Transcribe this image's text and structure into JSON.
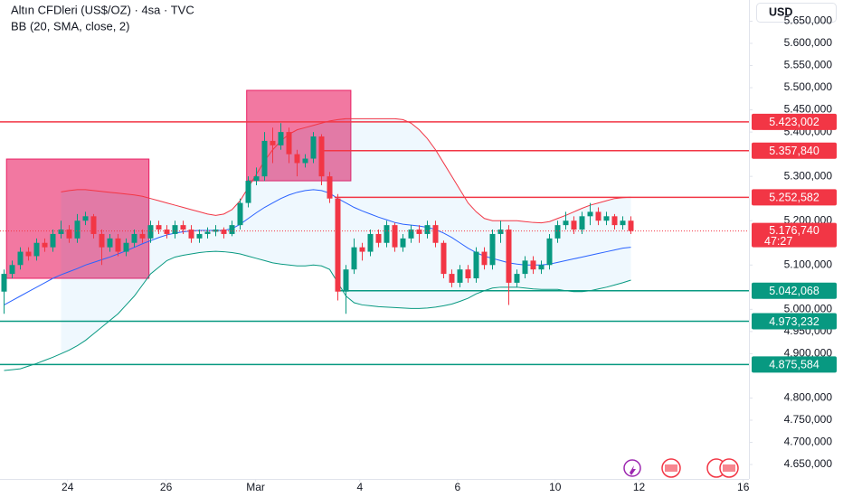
{
  "chart_data": {
    "type": "candlestick",
    "title": "Altın CFDleri (US$/OZ) · 4sa · TVC",
    "subtitle": "BB (20, SMA, close, 2)",
    "currency": "USD",
    "ylim": [
      4617.5,
      5697.8
    ],
    "yticks": [
      {
        "value": 5650,
        "label": "5.650,000"
      },
      {
        "value": 5600,
        "label": "5.600,000"
      },
      {
        "value": 5550,
        "label": "5.550,000"
      },
      {
        "value": 5500,
        "label": "5.500,000"
      },
      {
        "value": 5450,
        "label": "5.450,000"
      },
      {
        "value": 5400,
        "label": "5.400,000"
      },
      {
        "value": 5300,
        "label": "5.300,000"
      },
      {
        "value": 5200,
        "label": "5.200,000"
      },
      {
        "value": 5100,
        "label": "5.100,000"
      },
      {
        "value": 5000,
        "label": "5.000,000"
      },
      {
        "value": 4950,
        "label": "4.950,000"
      },
      {
        "value": 4900,
        "label": "4.900,000"
      },
      {
        "value": 4800,
        "label": "4.800,000"
      },
      {
        "value": 4750,
        "label": "4.750,000"
      },
      {
        "value": 4700,
        "label": "4.700,000"
      },
      {
        "value": 4650,
        "label": "4.650,000"
      }
    ],
    "xlim": [
      -0.5,
      91.5
    ],
    "xticks": [
      {
        "value": 7.8,
        "label": "24"
      },
      {
        "value": 19.9,
        "label": "26"
      },
      {
        "value": 30.9,
        "label": "Mar"
      },
      {
        "value": 43.7,
        "label": "4"
      },
      {
        "value": 55.7,
        "label": "6"
      },
      {
        "value": 67.7,
        "label": "10"
      },
      {
        "value": 78,
        "label": "12"
      },
      {
        "value": 90.8,
        "label": "16"
      }
    ],
    "up_color": "#089981",
    "down_color": "#f23645",
    "open": [
      5040,
      5080,
      5100,
      5130,
      5120,
      5150,
      5140,
      5170,
      5180,
      5160,
      5200,
      5210,
      5170,
      5140,
      5160,
      5130,
      5150,
      5170,
      5160,
      5190,
      5180,
      5170,
      5190,
      5180,
      5160,
      5170,
      5175,
      5180,
      5170,
      5190,
      5240,
      5290,
      5300,
      5380,
      5370,
      5400,
      5350,
      5330,
      5340,
      5390,
      5300,
      5250,
      5040,
      5090,
      5140,
      5130,
      5170,
      5150,
      5190,
      5140,
      5160,
      5180,
      5170,
      5190,
      5150,
      5080,
      5060,
      5090,
      5070,
      5130,
      5100,
      5170,
      5180,
      5060,
      5080,
      5110,
      5090,
      5100,
      5160,
      5190,
      5200,
      5180,
      5210,
      5220,
      5200,
      5210,
      5190,
      5200
    ],
    "high": [
      5090,
      5110,
      5140,
      5140,
      5160,
      5160,
      5180,
      5200,
      5190,
      5215,
      5220,
      5215,
      5180,
      5170,
      5170,
      5160,
      5180,
      5180,
      5200,
      5200,
      5190,
      5200,
      5200,
      5190,
      5180,
      5185,
      5190,
      5185,
      5200,
      5250,
      5300,
      5320,
      5400,
      5410,
      5420,
      5410,
      5360,
      5350,
      5400,
      5395,
      5310,
      5260,
      5100,
      5160,
      5150,
      5180,
      5180,
      5200,
      5195,
      5170,
      5190,
      5190,
      5200,
      5200,
      5155,
      5090,
      5100,
      5100,
      5140,
      5140,
      5180,
      5200,
      5190,
      5090,
      5120,
      5120,
      5110,
      5170,
      5200,
      5220,
      5210,
      5220,
      5240,
      5230,
      5220,
      5215,
      5210,
      5210
    ],
    "low": [
      4990,
      5070,
      5090,
      5110,
      5110,
      5130,
      5130,
      5160,
      5150,
      5150,
      5190,
      5160,
      5100,
      5130,
      5120,
      5120,
      5140,
      5150,
      5150,
      5170,
      5160,
      5160,
      5170,
      5150,
      5150,
      5160,
      5165,
      5160,
      5165,
      5180,
      5230,
      5280,
      5290,
      5330,
      5360,
      5330,
      5300,
      5320,
      5330,
      5280,
      5240,
      5020,
      4990,
      5080,
      5110,
      5120,
      5140,
      5140,
      5130,
      5130,
      5150,
      5150,
      5160,
      5140,
      5070,
      5050,
      5050,
      5060,
      5060,
      5090,
      5090,
      5150,
      5010,
      5050,
      5070,
      5080,
      5080,
      5090,
      5150,
      5180,
      5170,
      5170,
      5190,
      5190,
      5190,
      5180,
      5180,
      5170
    ],
    "close": [
      5080,
      5100,
      5130,
      5120,
      5150,
      5140,
      5170,
      5180,
      5160,
      5200,
      5210,
      5170,
      5140,
      5160,
      5130,
      5150,
      5170,
      5160,
      5190,
      5180,
      5170,
      5190,
      5180,
      5160,
      5170,
      5175,
      5180,
      5170,
      5190,
      5240,
      5290,
      5300,
      5380,
      5370,
      5400,
      5350,
      5330,
      5340,
      5390,
      5300,
      5250,
      5040,
      5090,
      5140,
      5130,
      5170,
      5150,
      5190,
      5140,
      5160,
      5180,
      5170,
      5190,
      5150,
      5080,
      5060,
      5090,
      5070,
      5130,
      5100,
      5170,
      5180,
      5060,
      5080,
      5110,
      5090,
      5100,
      5160,
      5190,
      5200,
      5180,
      5210,
      5220,
      5200,
      5210,
      5190,
      5200,
      5176.74
    ],
    "bands": [
      {
        "color": "#f23645",
        "values": [
          null,
          null,
          null,
          null,
          null,
          null,
          null,
          5265,
          5268,
          5270,
          5270,
          5268,
          5266,
          5264,
          5262,
          5260,
          5258,
          5255,
          5250,
          5245,
          5240,
          5235,
          5230,
          5225,
          5220,
          5215,
          5212,
          5215,
          5225,
          5245,
          5275,
          5305,
          5335,
          5360,
          5380,
          5395,
          5405,
          5410,
          5415,
          5420,
          5425,
          5428,
          5430,
          5430,
          5430,
          5430,
          5430,
          5430,
          5430,
          5428,
          5420,
          5405,
          5385,
          5360,
          5330,
          5300,
          5270,
          5240,
          5220,
          5205,
          5200,
          5200,
          5200,
          5200,
          5198,
          5196,
          5195,
          5198,
          5205,
          5212,
          5220,
          5228,
          5235,
          5240,
          5245,
          5250,
          5252,
          5253
        ]
      },
      {
        "color": "#2962ff",
        "values": [
          5010,
          5020,
          5030,
          5040,
          5050,
          5060,
          5070,
          5078,
          5085,
          5092,
          5100,
          5106,
          5112,
          5118,
          5125,
          5132,
          5140,
          5148,
          5155,
          5162,
          5168,
          5172,
          5175,
          5177,
          5178,
          5178,
          5178,
          5178,
          5182,
          5192,
          5205,
          5218,
          5230,
          5240,
          5250,
          5258,
          5264,
          5268,
          5270,
          5268,
          5262,
          5250,
          5240,
          5230,
          5222,
          5215,
          5208,
          5202,
          5196,
          5192,
          5190,
          5188,
          5185,
          5180,
          5172,
          5162,
          5150,
          5138,
          5128,
          5120,
          5115,
          5110,
          5105,
          5102,
          5100,
          5100,
          5100,
          5102,
          5106,
          5110,
          5114,
          5118,
          5122,
          5126,
          5130,
          5134,
          5138,
          5140
        ]
      },
      {
        "color": "#089981",
        "values": [
          4862,
          4864,
          4866,
          4872,
          4878,
          4885,
          4892,
          4900,
          4908,
          4918,
          4930,
          4945,
          4960,
          4975,
          4990,
          5010,
          5030,
          5055,
          5080,
          5095,
          5110,
          5118,
          5122,
          5125,
          5128,
          5130,
          5131,
          5130,
          5128,
          5125,
          5120,
          5115,
          5110,
          5105,
          5102,
          5100,
          5098,
          5098,
          5100,
          5098,
          5090,
          5060,
          5030,
          5015,
          5010,
          5008,
          5006,
          5005,
          5004,
          5003,
          5002,
          5002,
          5003,
          5005,
          5008,
          5012,
          5018,
          5025,
          5035,
          5042,
          5048,
          5050,
          5050,
          5050,
          5048,
          5046,
          5045,
          5045,
          5045,
          5042,
          5040,
          5040,
          5042,
          5046,
          5050,
          5055,
          5060,
          5066
        ]
      }
    ],
    "boxes": [
      {
        "x": [
          0.3,
          17.8
        ],
        "y": [
          5070,
          5339
        ]
      },
      {
        "x": [
          29.8,
          42.6
        ],
        "y": [
          5290,
          5494
        ]
      }
    ],
    "levels": [
      {
        "value": 5423.002,
        "label": "5.423,002",
        "color": "#f23645",
        "start": -0.5
      },
      {
        "value": 5357.84,
        "label": "5.357,840",
        "color": "#f23645",
        "start": 38.9
      },
      {
        "value": 5252.582,
        "label": "5.252,582",
        "color": "#f23645",
        "start": 40.6
      },
      {
        "value": 5042.068,
        "label": "5.042,068",
        "color": "#089981",
        "start": 40.8
      },
      {
        "value": 4973.232,
        "label": "4.973,232",
        "color": "#089981",
        "start": -0.5
      },
      {
        "value": 4875.584,
        "label": "4.875,584",
        "color": "#089981",
        "start": -0.5
      }
    ],
    "last_price": {
      "value": 5176.74,
      "label": "5.176,740",
      "countdown": "47:27",
      "color": "#f23645"
    }
  }
}
